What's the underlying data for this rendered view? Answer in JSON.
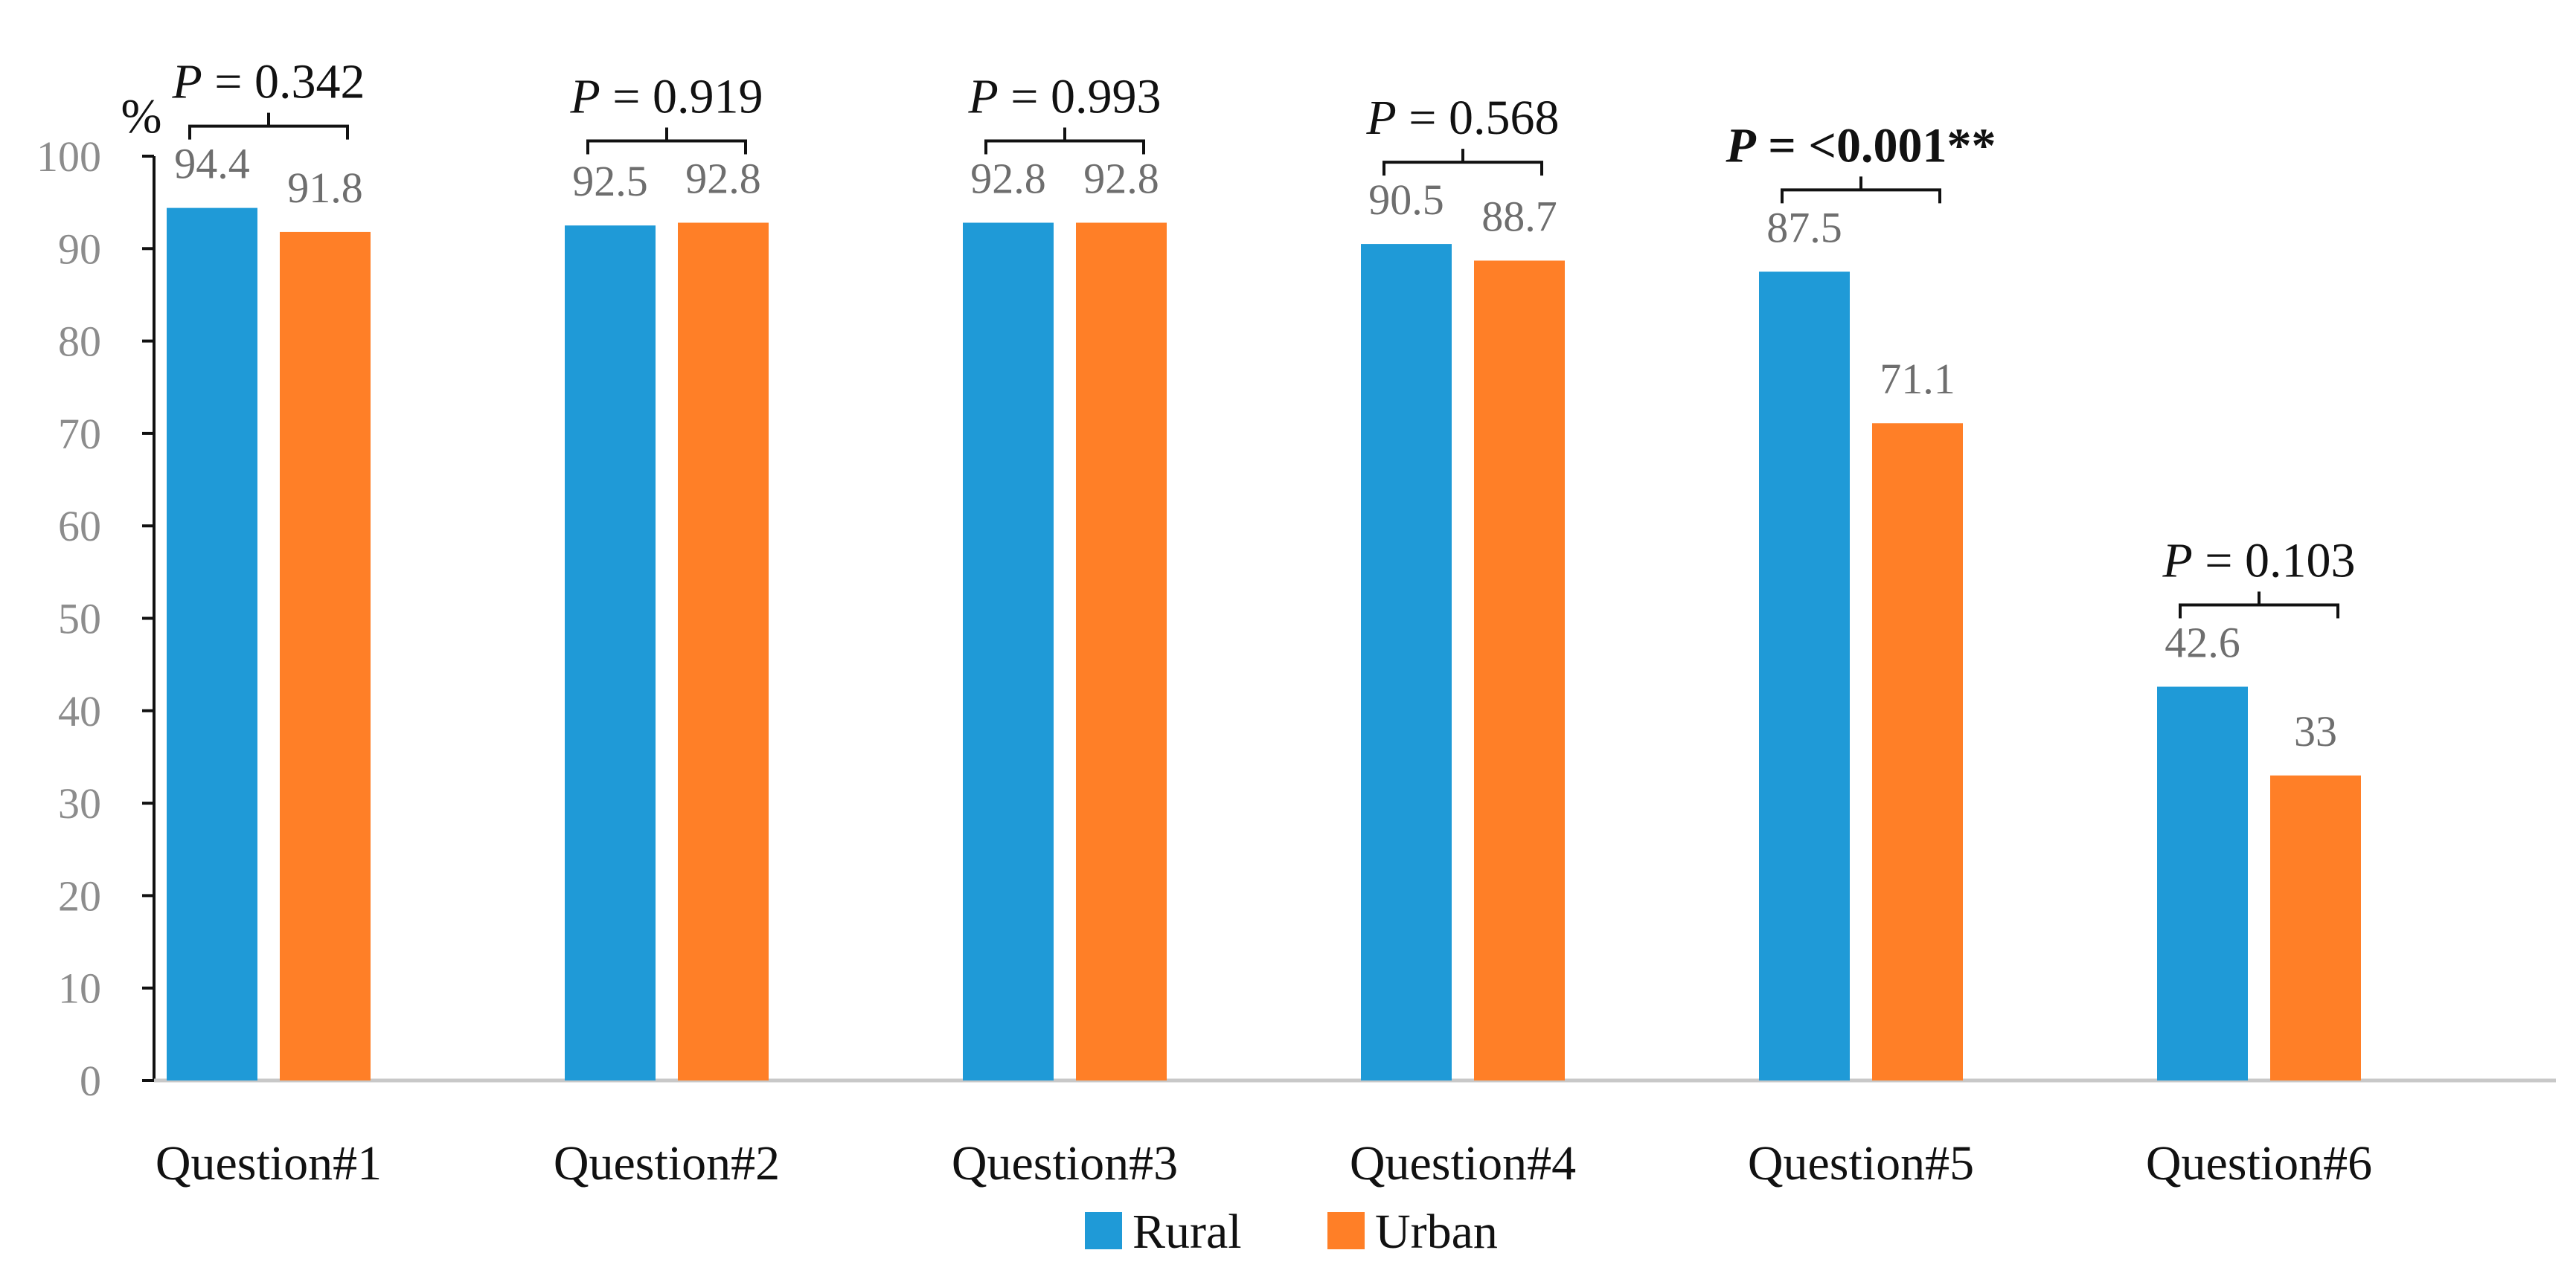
{
  "chart_data": {
    "type": "bar",
    "title": "",
    "xlabel": "",
    "ylabel": "%",
    "ylim": [
      0,
      100
    ],
    "yticks": [
      0,
      10,
      20,
      30,
      40,
      50,
      60,
      70,
      80,
      90,
      100
    ],
    "grid": false,
    "legend_position": "bottom-center",
    "categories": [
      "Question#1",
      "Question#2",
      "Question#3",
      "Question#4",
      "Question#5",
      "Question#6"
    ],
    "series": [
      {
        "name": "Rural",
        "color": "#1f9ad7",
        "values": [
          94.4,
          92.5,
          92.8,
          90.5,
          87.5,
          42.6
        ],
        "labels": [
          "94.4",
          "92.5",
          "92.8",
          "90.5",
          "87.5",
          "42.6"
        ]
      },
      {
        "name": "Urban",
        "color": "#ff7f27",
        "values": [
          91.8,
          92.8,
          92.8,
          88.7,
          71.1,
          33
        ],
        "labels": [
          "91.8",
          "92.8",
          "92.8",
          "88.7",
          "71.1",
          "33"
        ]
      }
    ],
    "annotations": [
      {
        "category": "Question#1",
        "p_symbol": "P",
        "p_value": " = 0.342",
        "bold": false
      },
      {
        "category": "Question#2",
        "p_symbol": "P",
        "p_value": " = 0.919",
        "bold": false
      },
      {
        "category": "Question#3",
        "p_symbol": "P",
        "p_value": " = 0.993",
        "bold": false
      },
      {
        "category": "Question#4",
        "p_symbol": "P",
        "p_value": " = 0.568",
        "bold": false
      },
      {
        "category": "Question#5",
        "p_symbol": "P",
        "p_value": " = <0.001**",
        "bold": true
      },
      {
        "category": "Question#6",
        "p_symbol": "P",
        "p_value": " = 0.103",
        "bold": false
      }
    ],
    "axis_color": "#c8c8c8"
  }
}
